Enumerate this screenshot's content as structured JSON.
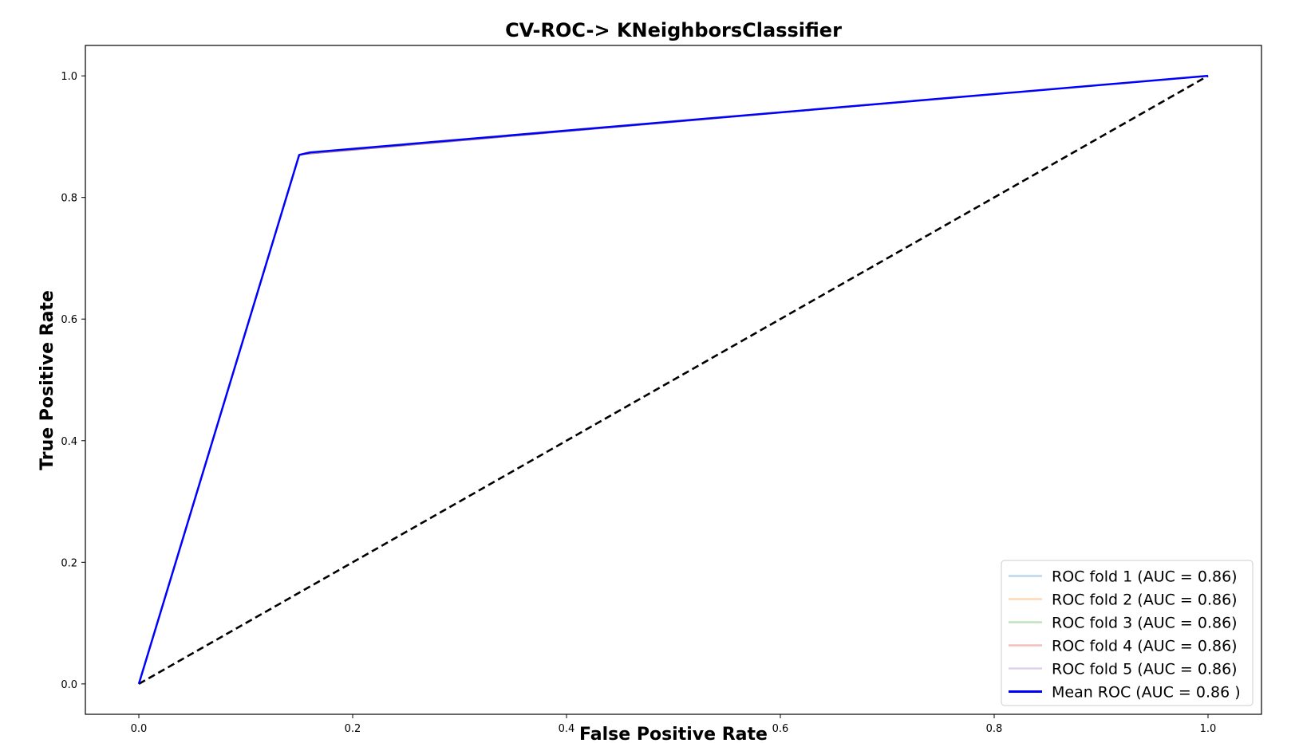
{
  "chart_data": {
    "type": "line",
    "title": "CV-ROC-> KNeighborsClassifier",
    "xlabel": "False Positive Rate",
    "ylabel": "True Positive Rate",
    "xlim": [
      -0.05,
      1.05
    ],
    "ylim": [
      -0.05,
      1.05
    ],
    "x_ticks": [
      "0.0",
      "0.2",
      "0.4",
      "0.6",
      "0.8",
      "1.0"
    ],
    "y_ticks": [
      "0.0",
      "0.2",
      "0.4",
      "0.6",
      "0.8",
      "1.0"
    ],
    "grid": false,
    "legend_position": "lower-right",
    "series": [
      {
        "name": "ROC fold 1 (AUC = 0.86)",
        "color": "#1f77b4",
        "opacity": 0.3,
        "width": 1,
        "x": [
          0,
          0.15,
          1
        ],
        "y": [
          0,
          0.87,
          1
        ]
      },
      {
        "name": "ROC fold 2 (AUC = 0.86)",
        "color": "#ff7f0e",
        "opacity": 0.3,
        "width": 1,
        "x": [
          0,
          0.15,
          1
        ],
        "y": [
          0,
          0.87,
          1
        ]
      },
      {
        "name": "ROC fold 3 (AUC = 0.86)",
        "color": "#2ca02c",
        "opacity": 0.3,
        "width": 1,
        "x": [
          0,
          0.15,
          1
        ],
        "y": [
          0,
          0.87,
          1
        ]
      },
      {
        "name": "ROC fold 4 (AUC = 0.86)",
        "color": "#d62728",
        "opacity": 0.3,
        "width": 1,
        "x": [
          0,
          0.15,
          1
        ],
        "y": [
          0,
          0.87,
          1
        ]
      },
      {
        "name": "ROC fold 5 (AUC = 0.86)",
        "color": "#9467bd",
        "opacity": 0.3,
        "width": 1,
        "x": [
          0,
          0.15,
          1
        ],
        "y": [
          0,
          0.87,
          1
        ]
      },
      {
        "name": "Mean ROC (AUC = 0.86 )",
        "color": "#0000ff",
        "opacity": 1,
        "width": 2.5,
        "x": [
          0,
          0.15,
          0.16,
          1
        ],
        "y": [
          0,
          0.87,
          0.874,
          1
        ]
      }
    ],
    "chance_line": {
      "x": [
        0,
        1
      ],
      "y": [
        0,
        1
      ],
      "color": "#000000",
      "style": "dashed"
    }
  }
}
